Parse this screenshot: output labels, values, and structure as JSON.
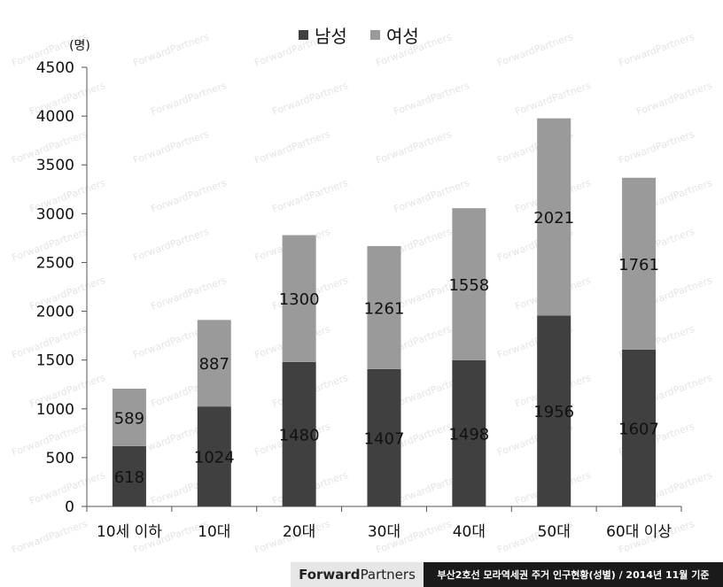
{
  "chart_data": {
    "type": "bar",
    "stacked": true,
    "categories": [
      "10세 이하",
      "10대",
      "20대",
      "30대",
      "40대",
      "50대",
      "60대 이상"
    ],
    "series": [
      {
        "name": "남성",
        "values": [
          618,
          1024,
          1480,
          1407,
          1498,
          1956,
          1607
        ],
        "color": "#404040"
      },
      {
        "name": "여성",
        "values": [
          589,
          887,
          1300,
          1261,
          1558,
          2021,
          1761
        ],
        "color": "#9a9a9a"
      }
    ],
    "ylabel": "(명)",
    "ylim": [
      0,
      4500
    ],
    "yticks": [
      0,
      500,
      1000,
      1500,
      2000,
      2500,
      3000,
      3500,
      4000,
      4500
    ],
    "grid": false,
    "legend_position": "top-center"
  },
  "watermark": "ForwardPartners",
  "footer": {
    "logo_part1": "Forward",
    "logo_part2": "Partners",
    "source": "부산2호선 모라역세권 주거 인구현황(성별) / 2014년 11월 기준"
  }
}
